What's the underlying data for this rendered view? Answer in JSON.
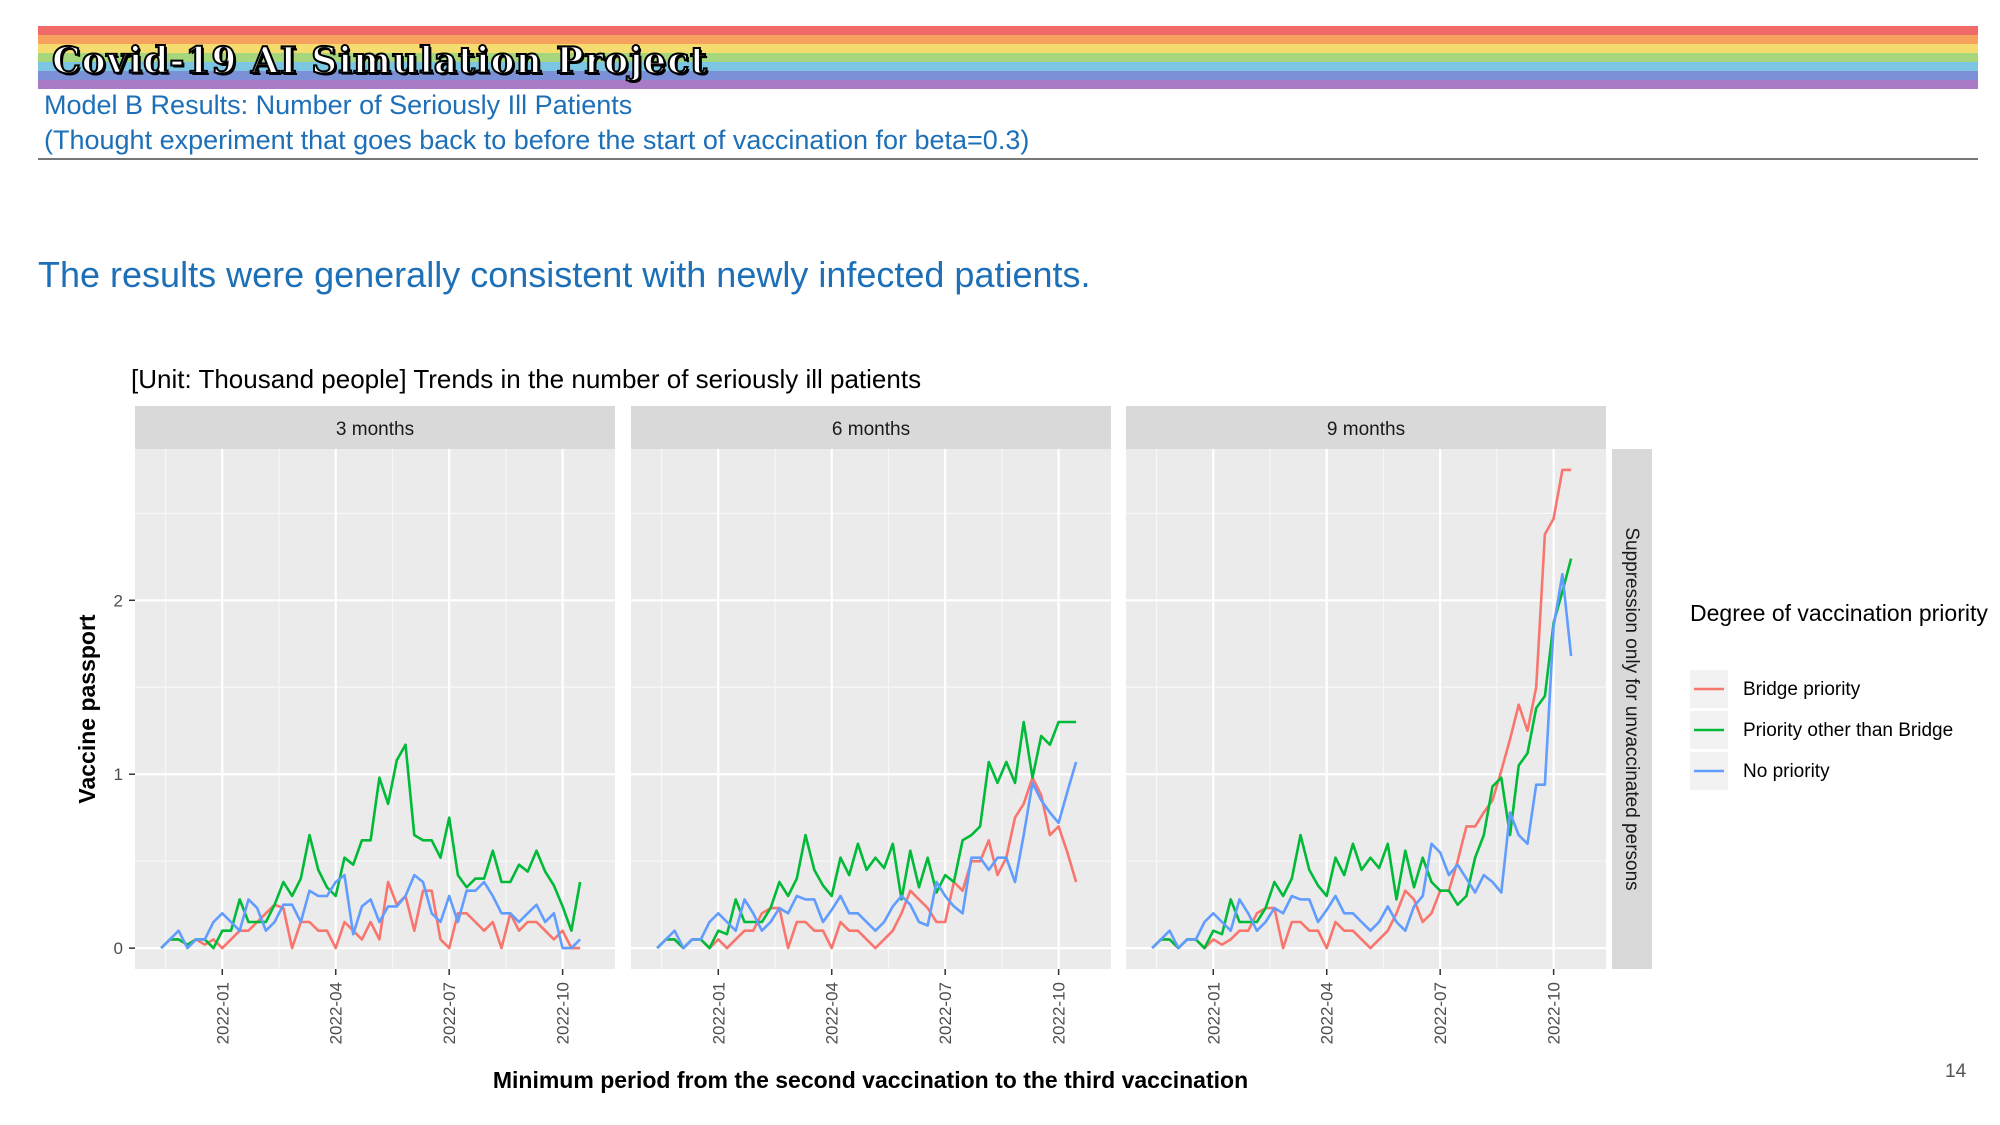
{
  "header": {
    "brand_title": "Covid-19 AI Simulation Project",
    "rainbow_colors": [
      "#f06a6a",
      "#f6a25e",
      "#f4dd6e",
      "#a6d77c",
      "#7cc6e3",
      "#7c90d8",
      "#a97bc7"
    ],
    "subtitle_line1": "Model B Results: Number of Seriously Ill Patients",
    "subtitle_line2": "(Thought experiment that goes back to before the start of vaccination for beta=0.3)"
  },
  "lead_text": "The results were generally consistent with newly infected patients.",
  "page_number": "14",
  "chart_data": {
    "type": "line",
    "title": "[Unit: Thousand people] Trends in the number of seriously ill patients",
    "xlabel": "Minimum period from the second vaccination to the third vaccination",
    "ylabel": "Vaccine passport",
    "strip_right": "Suppression only for unvaccinated persons",
    "panels": [
      "3 months",
      "6 months",
      "9 months"
    ],
    "x_ticks": [
      "2022-01",
      "2022-04",
      "2022-07",
      "2022-10"
    ],
    "x_tick_weeks": [
      7,
      20,
      33,
      46
    ],
    "x_range_weeks": [
      -3,
      52
    ],
    "y_ticks": [
      0,
      1,
      2
    ],
    "ylim": [
      -0.12,
      2.87
    ],
    "grid": true,
    "legend_title": "Degree of vaccination priority",
    "legend_position": "right",
    "series_names": [
      "Bridge priority",
      "Priority other than Bridge",
      "No priority"
    ],
    "series_colors": [
      "#f8766d",
      "#00ba38",
      "#619cff"
    ],
    "panel_series": [
      [
        [
          0,
          0.05,
          0.05,
          0.02,
          0.05,
          0.02,
          0.05,
          0,
          0.05,
          0.1,
          0.1,
          0.15,
          0.2,
          0.25,
          0.23,
          0,
          0.15,
          0.15,
          0.1,
          0.1,
          0,
          0.15,
          0.1,
          0.05,
          0.15,
          0.05,
          0.38,
          0.25,
          0.3,
          0.1,
          0.33,
          0.33,
          0.05,
          0,
          0.2,
          0.2,
          0.15,
          0.1,
          0.15,
          0,
          0.2,
          0.1,
          0.15,
          0.15,
          0.1,
          0.05,
          0.1,
          0,
          0
        ],
        [
          0,
          0.05,
          0.05,
          0.02,
          0.05,
          0.05,
          0,
          0.1,
          0.1,
          0.28,
          0.15,
          0.15,
          0.15,
          0.25,
          0.38,
          0.3,
          0.4,
          0.65,
          0.45,
          0.35,
          0.3,
          0.52,
          0.48,
          0.62,
          0.62,
          0.98,
          0.83,
          1.08,
          1.17,
          0.65,
          0.62,
          0.62,
          0.52,
          0.75,
          0.42,
          0.35,
          0.4,
          0.4,
          0.56,
          0.38,
          0.38,
          0.48,
          0.44,
          0.56,
          0.44,
          0.36,
          0.24,
          0.1,
          0.38
        ],
        [
          0,
          0.05,
          0.1,
          0,
          0.05,
          0.05,
          0.15,
          0.2,
          0.15,
          0.1,
          0.28,
          0.23,
          0.1,
          0.15,
          0.25,
          0.25,
          0.15,
          0.33,
          0.3,
          0.3,
          0.38,
          0.42,
          0.08,
          0.24,
          0.28,
          0.15,
          0.24,
          0.24,
          0.3,
          0.42,
          0.38,
          0.2,
          0.15,
          0.3,
          0.15,
          0.33,
          0.33,
          0.38,
          0.3,
          0.2,
          0.2,
          0.15,
          0.2,
          0.25,
          0.15,
          0.2,
          0,
          0,
          0.05
        ]
      ],
      [
        [
          0,
          0.05,
          0.05,
          0,
          0.05,
          0.05,
          0,
          0.05,
          0,
          0.05,
          0.1,
          0.1,
          0.2,
          0.23,
          0.23,
          0,
          0.15,
          0.15,
          0.1,
          0.1,
          0,
          0.15,
          0.1,
          0.1,
          0.05,
          0,
          0.05,
          0.1,
          0.2,
          0.33,
          0.28,
          0.23,
          0.15,
          0.15,
          0.38,
          0.33,
          0.5,
          0.5,
          0.62,
          0.42,
          0.52,
          0.75,
          0.83,
          0.98,
          0.88,
          0.65,
          0.7,
          0.55,
          0.38
        ],
        [
          0,
          0.05,
          0.05,
          0,
          0.05,
          0.05,
          0,
          0.1,
          0.08,
          0.28,
          0.15,
          0.15,
          0.15,
          0.23,
          0.38,
          0.3,
          0.4,
          0.65,
          0.45,
          0.36,
          0.3,
          0.52,
          0.42,
          0.6,
          0.45,
          0.52,
          0.46,
          0.6,
          0.28,
          0.56,
          0.35,
          0.52,
          0.32,
          0.42,
          0.38,
          0.62,
          0.65,
          0.7,
          1.07,
          0.95,
          1.07,
          0.95,
          1.3,
          0.98,
          1.22,
          1.17,
          1.3,
          1.3,
          1.3
        ],
        [
          0,
          0.05,
          0.1,
          0,
          0.05,
          0.05,
          0.15,
          0.2,
          0.15,
          0.1,
          0.28,
          0.2,
          0.1,
          0.15,
          0.23,
          0.2,
          0.3,
          0.28,
          0.28,
          0.15,
          0.22,
          0.3,
          0.2,
          0.2,
          0.15,
          0.1,
          0.15,
          0.24,
          0.3,
          0.25,
          0.15,
          0.13,
          0.38,
          0.3,
          0.24,
          0.2,
          0.52,
          0.52,
          0.45,
          0.52,
          0.52,
          0.38,
          0.65,
          0.95,
          0.85,
          0.78,
          0.72,
          0.9,
          1.07
        ]
      ],
      [
        [
          0,
          0.05,
          0.05,
          0,
          0.05,
          0.05,
          0,
          0.05,
          0.02,
          0.05,
          0.1,
          0.1,
          0.2,
          0.23,
          0.23,
          0,
          0.15,
          0.15,
          0.1,
          0.1,
          0,
          0.15,
          0.1,
          0.1,
          0.05,
          0,
          0.05,
          0.1,
          0.2,
          0.33,
          0.28,
          0.15,
          0.2,
          0.33,
          0.33,
          0.5,
          0.7,
          0.7,
          0.78,
          0.85,
          1.02,
          1.2,
          1.4,
          1.25,
          1.5,
          2.38,
          2.47,
          2.75,
          2.75
        ],
        [
          0,
          0.05,
          0.05,
          0,
          0.05,
          0.05,
          0,
          0.1,
          0.08,
          0.28,
          0.15,
          0.15,
          0.15,
          0.23,
          0.38,
          0.3,
          0.4,
          0.65,
          0.45,
          0.36,
          0.3,
          0.52,
          0.42,
          0.6,
          0.45,
          0.52,
          0.46,
          0.6,
          0.28,
          0.56,
          0.35,
          0.52,
          0.38,
          0.33,
          0.33,
          0.25,
          0.3,
          0.52,
          0.65,
          0.93,
          0.98,
          0.65,
          1.05,
          1.12,
          1.38,
          1.45,
          1.87,
          2.05,
          2.24
        ],
        [
          0,
          0.05,
          0.1,
          0,
          0.05,
          0.05,
          0.15,
          0.2,
          0.15,
          0.1,
          0.28,
          0.2,
          0.1,
          0.15,
          0.23,
          0.2,
          0.3,
          0.28,
          0.28,
          0.15,
          0.22,
          0.3,
          0.2,
          0.2,
          0.15,
          0.1,
          0.15,
          0.24,
          0.15,
          0.1,
          0.24,
          0.3,
          0.6,
          0.55,
          0.42,
          0.48,
          0.4,
          0.32,
          0.42,
          0.38,
          0.32,
          0.78,
          0.65,
          0.6,
          0.94,
          0.94,
          1.85,
          2.15,
          1.68
        ]
      ]
    ]
  }
}
